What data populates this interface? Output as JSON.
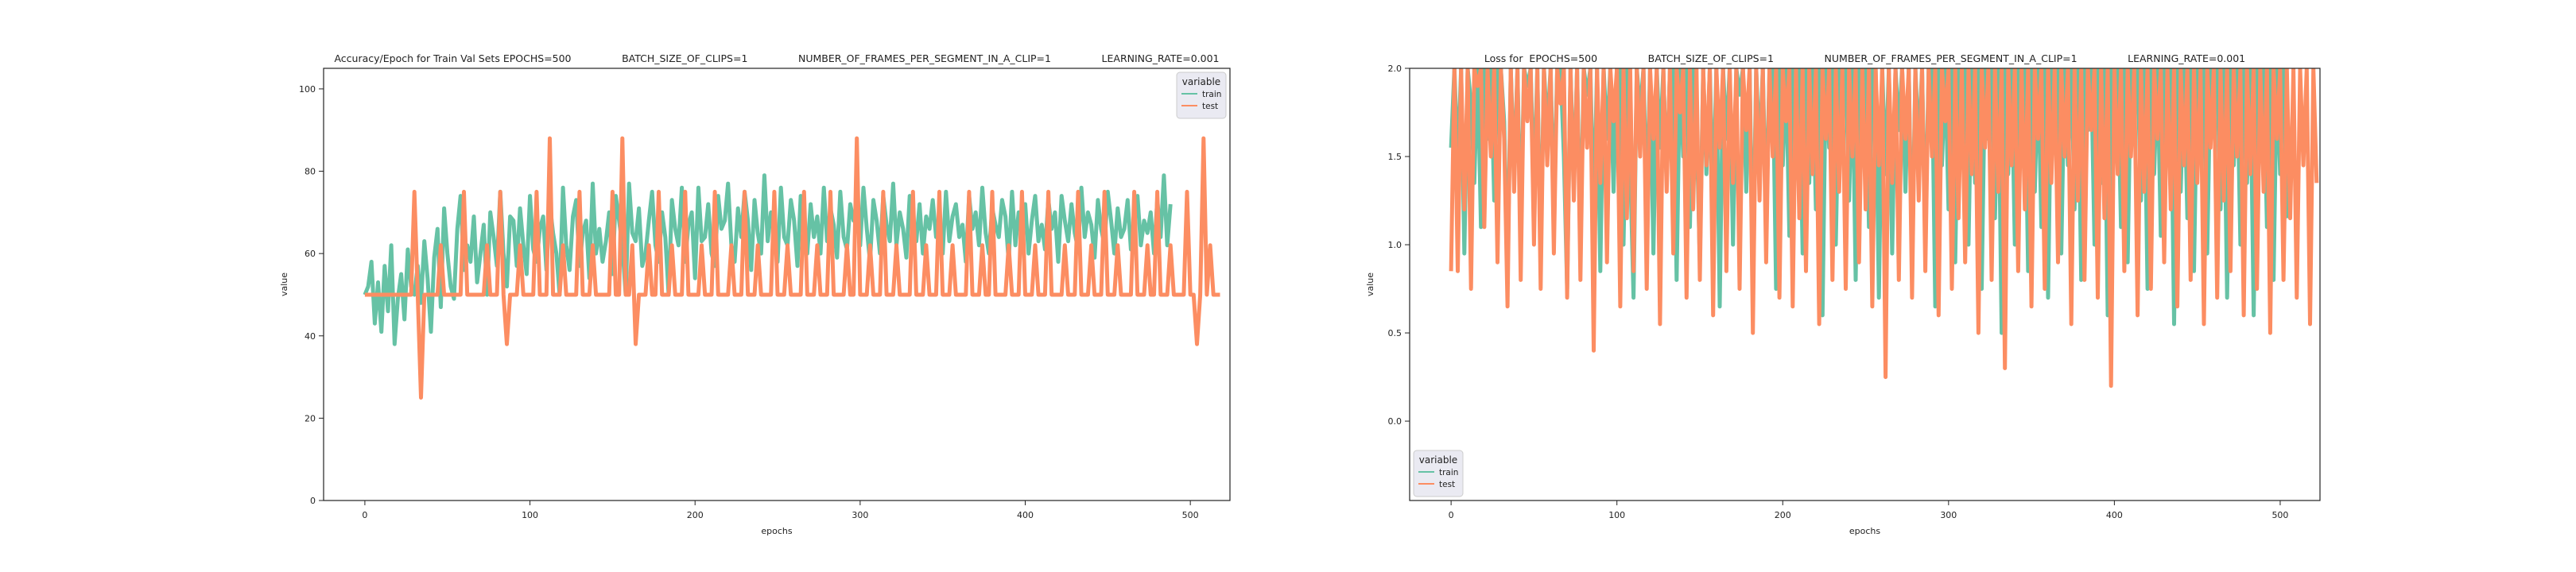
{
  "colors": {
    "train": "#66c2a5",
    "test": "#fc8d62",
    "axis": "#222222",
    "legend_bg": "#eaeaf2"
  },
  "chart_data": [
    {
      "type": "line",
      "title": "Accuracy/Epoch for Train Val Sets EPOCHS=500                BATCH_SIZE_OF_CLIPS=1                NUMBER_OF_FRAMES_PER_SEGMENT_IN_A_CLIP=1                LEARNING_RATE=0.001",
      "xlabel": "epochs",
      "ylabel": "value",
      "xlim": [
        -25,
        524
      ],
      "ylim": [
        0,
        105
      ],
      "xticks": [
        0,
        100,
        200,
        300,
        400,
        500
      ],
      "yticks": [
        0,
        20,
        40,
        60,
        80,
        100
      ],
      "legend": {
        "title": "variable",
        "placement": "top-right",
        "entries": [
          "train",
          "test"
        ]
      },
      "series": [
        {
          "name": "train",
          "x_start": 0,
          "x_step": 2,
          "values": [
            50,
            52,
            58,
            43,
            53,
            41,
            57,
            46,
            62,
            38,
            49,
            55,
            44,
            61,
            52,
            50,
            57,
            48,
            63,
            54,
            41,
            59,
            66,
            47,
            71,
            60,
            52,
            49,
            66,
            74,
            56,
            62,
            58,
            69,
            53,
            60,
            67,
            50,
            70,
            64,
            57,
            75,
            60,
            52,
            69,
            68,
            57,
            71,
            62,
            55,
            74,
            61,
            58,
            66,
            69,
            56,
            72,
            65,
            60,
            50,
            76,
            62,
            56,
            69,
            73,
            57,
            65,
            68,
            54,
            77,
            60,
            66,
            58,
            63,
            70,
            55,
            74,
            68,
            62,
            50,
            77,
            65,
            63,
            71,
            57,
            60,
            68,
            75,
            62,
            58,
            70,
            64,
            50,
            73,
            66,
            62,
            76,
            58,
            67,
            70,
            54,
            76,
            63,
            64,
            72,
            60,
            57,
            74,
            66,
            68,
            77,
            62,
            58,
            71,
            64,
            75,
            68,
            56,
            73,
            65,
            60,
            79,
            63,
            70,
            67,
            58,
            76,
            64,
            62,
            73,
            68,
            57,
            74,
            66,
            60,
            72,
            64,
            69,
            60,
            76,
            63,
            71,
            67,
            59,
            75,
            64,
            61,
            72,
            68,
            70,
            62,
            76,
            66,
            58,
            73,
            68,
            60,
            74,
            67,
            63,
            77,
            62,
            70,
            66,
            59,
            74,
            68,
            63,
            72,
            60,
            69,
            66,
            73,
            64,
            67,
            60,
            75,
            63,
            69,
            72,
            64,
            67,
            58,
            74,
            66,
            70,
            62,
            76,
            65,
            60,
            71,
            67,
            64,
            73,
            69,
            58,
            75,
            62,
            70,
            66,
            72,
            60,
            68,
            74,
            63,
            67,
            61,
            73,
            66,
            70,
            58,
            74,
            68,
            63,
            72,
            65,
            61,
            76,
            64,
            70,
            67,
            59,
            73,
            66,
            62,
            75,
            68,
            60,
            71,
            64,
            66,
            73,
            61,
            69,
            74,
            62,
            68,
            65,
            70,
            60,
            73,
            64,
            79,
            62,
            72
          ]
        },
        {
          "name": "test",
          "x_start": 0,
          "x_step": 2,
          "values": [
            50,
            50,
            50,
            50,
            50,
            50,
            50,
            50,
            50,
            50,
            50,
            50,
            50,
            50,
            50,
            75,
            50,
            25,
            50,
            50,
            50,
            50,
            50,
            62,
            50,
            50,
            50,
            50,
            50,
            50,
            75,
            50,
            50,
            50,
            50,
            50,
            50,
            62,
            50,
            50,
            50,
            75,
            50,
            38,
            50,
            50,
            50,
            62,
            50,
            50,
            50,
            50,
            75,
            50,
            50,
            50,
            88,
            50,
            50,
            50,
            62,
            50,
            50,
            50,
            50,
            75,
            50,
            50,
            50,
            62,
            50,
            50,
            50,
            50,
            50,
            75,
            50,
            50,
            88,
            50,
            50,
            62,
            38,
            50,
            50,
            50,
            62,
            50,
            50,
            75,
            50,
            50,
            50,
            62,
            50,
            50,
            50,
            75,
            50,
            50,
            50,
            50,
            62,
            50,
            50,
            50,
            75,
            50,
            50,
            50,
            50,
            62,
            50,
            50,
            50,
            75,
            50,
            50,
            50,
            62,
            50,
            50,
            50,
            50,
            75,
            50,
            50,
            50,
            62,
            50,
            50,
            50,
            50,
            75,
            50,
            50,
            50,
            62,
            50,
            50,
            50,
            75,
            50,
            50,
            50,
            50,
            62,
            50,
            50,
            88,
            50,
            50,
            50,
            62,
            50,
            50,
            50,
            75,
            50,
            50,
            50,
            62,
            50,
            50,
            50,
            50,
            75,
            50,
            50,
            50,
            62,
            50,
            50,
            50,
            75,
            50,
            50,
            50,
            62,
            50,
            50,
            50,
            50,
            75,
            50,
            50,
            50,
            62,
            50,
            50,
            75,
            50,
            50,
            50,
            50,
            62,
            50,
            50,
            50,
            75,
            50,
            50,
            50,
            62,
            50,
            50,
            50,
            75,
            50,
            50,
            50,
            50,
            62,
            50,
            50,
            50,
            75,
            50,
            50,
            50,
            62,
            50,
            50,
            50,
            75,
            50,
            50,
            50,
            62,
            50,
            50,
            50,
            50,
            75,
            50,
            50,
            50,
            62,
            50,
            50,
            75,
            50,
            50,
            50,
            62,
            50,
            50,
            50,
            50,
            75,
            50,
            50,
            38,
            50,
            88,
            50,
            62,
            50,
            50,
            50
          ]
        }
      ]
    },
    {
      "type": "line",
      "title": "Loss for  EPOCHS=500                BATCH_SIZE_OF_CLIPS=1                NUMBER_OF_FRAMES_PER_SEGMENT_IN_A_CLIP=1                LEARNING_RATE=0.001",
      "xlabel": "epochs",
      "ylabel": "value",
      "xlim": [
        -25,
        524
      ],
      "ylim": [
        -0.45,
        2.0
      ],
      "xticks": [
        0,
        100,
        200,
        300,
        400,
        500
      ],
      "yticks": [
        0.0,
        0.5,
        1.0,
        1.5,
        2.0
      ],
      "legend": {
        "title": "variable",
        "placement": "lower-left",
        "entries": [
          "train",
          "test"
        ]
      },
      "series": [
        {
          "name": "train",
          "x_start": 0,
          "x_step": 2,
          "values": [
            1.55,
            2.0,
            1.45,
            2.0,
            0.95,
            2.0,
            1.8,
            1.35,
            2.0,
            1.1,
            2.0,
            1.6,
            2.0,
            1.25,
            2.0,
            2.0,
            1.7,
            0.8,
            2.0,
            1.4,
            2.0,
            1.05,
            2.0,
            1.9,
            2.0,
            1.3,
            2.0,
            0.9,
            2.0,
            1.65,
            2.0,
            1.2,
            2.0,
            2.0,
            1.5,
            0.75,
            2.0,
            1.35,
            2.0,
            1.0,
            2.0,
            1.85,
            2.0,
            1.15,
            2.0,
            0.85,
            2.0,
            1.6,
            2.0,
            1.3,
            2.0,
            2.0,
            1.0,
            2.0,
            1.45,
            0.7,
            2.0,
            1.75,
            2.0,
            1.2,
            2.0,
            0.95,
            2.0,
            1.55,
            2.0,
            1.35,
            2.0,
            2.0,
            0.8,
            2.0,
            1.5,
            2.0,
            1.1,
            2.0,
            1.7,
            0.9,
            2.0,
            1.4,
            2.0,
            1.25,
            2.0,
            0.65,
            2.0,
            1.6,
            2.0,
            1.0,
            2.0,
            1.85,
            2.0,
            1.3,
            2.0,
            0.85,
            2.0,
            1.5,
            2.0,
            1.15,
            2.0,
            2.0,
            0.75,
            2.0,
            1.45,
            2.0,
            1.05,
            2.0,
            1.7,
            2.0,
            0.95,
            2.0,
            1.35,
            2.0,
            1.2,
            2.0,
            0.6,
            2.0,
            1.55,
            2.0,
            1.0,
            2.0,
            1.8,
            2.0,
            1.25,
            2.0,
            0.8,
            2.0,
            1.5,
            2.0,
            1.1,
            2.0,
            2.0,
            0.7,
            2.0,
            1.4,
            2.0,
            0.95,
            2.0,
            1.65,
            2.0,
            1.3,
            2.0,
            0.85,
            2.0,
            1.55,
            2.0,
            1.05,
            2.0,
            2.0,
            0.65,
            2.0,
            1.45,
            2.0,
            1.2,
            2.0,
            0.9,
            2.0,
            1.7,
            2.0,
            1.0,
            2.0,
            1.35,
            2.0,
            0.75,
            2.0,
            1.6,
            2.0,
            1.15,
            2.0,
            0.5,
            2.0,
            1.4,
            2.0,
            1.0,
            2.0,
            1.75,
            2.0,
            0.85,
            2.0,
            1.3,
            2.0,
            1.1,
            2.0,
            0.7,
            2.0,
            1.55,
            2.0,
            0.95,
            2.0,
            1.45,
            2.0,
            1.2,
            2.0,
            0.8,
            2.0,
            1.65,
            2.0,
            1.0,
            2.0,
            1.35,
            2.0,
            0.6,
            2.0,
            1.5,
            2.0,
            1.1,
            2.0,
            0.9,
            2.0,
            1.7,
            2.0,
            1.25,
            2.0,
            0.75,
            2.0,
            1.4,
            2.0,
            1.05,
            2.0,
            1.6,
            2.0,
            0.55,
            2.0,
            1.3,
            2.0,
            1.15,
            2.0,
            0.85,
            2.0,
            1.5,
            2.0,
            0.95,
            2.0,
            1.75,
            2.0,
            1.2,
            2.0,
            0.7,
            2.0,
            1.45,
            2.0,
            1.0,
            2.0,
            1.35,
            2.0,
            0.6,
            2.0,
            1.55,
            2.0,
            1.1,
            2.0,
            0.8,
            2.0,
            1.4,
            2.0,
            1.15
          ]
        },
        {
          "name": "test",
          "x_start": 0,
          "x_step": 2,
          "values": [
            0.85,
            2.0,
            0.85,
            2.0,
            1.2,
            2.0,
            0.75,
            2.0,
            1.9,
            2.0,
            1.1,
            2.0,
            1.5,
            2.0,
            0.9,
            2.0,
            1.6,
            0.65,
            2.0,
            1.3,
            2.0,
            0.8,
            2.0,
            1.7,
            2.0,
            1.0,
            2.0,
            0.75,
            2.0,
            1.45,
            2.0,
            0.95,
            2.0,
            1.8,
            2.0,
            0.7,
            2.0,
            1.25,
            2.0,
            0.8,
            2.0,
            1.55,
            2.0,
            0.4,
            2.0,
            1.35,
            2.0,
            0.9,
            2.0,
            1.7,
            2.0,
            0.65,
            2.0,
            1.15,
            2.0,
            0.85,
            2.0,
            1.5,
            2.0,
            0.75,
            2.0,
            1.6,
            2.0,
            0.55,
            2.0,
            1.3,
            2.0,
            0.95,
            2.0,
            1.75,
            2.0,
            0.7,
            2.0,
            1.2,
            2.0,
            0.8,
            2.0,
            1.45,
            2.0,
            0.6,
            2.0,
            1.55,
            2.0,
            0.85,
            2.0,
            1.35,
            2.0,
            0.75,
            2.0,
            1.65,
            2.0,
            0.5,
            2.0,
            1.25,
            2.0,
            0.9,
            2.0,
            1.5,
            2.0,
            0.7,
            2.0,
            1.7,
            2.0,
            0.65,
            2.0,
            1.15,
            2.0,
            0.85,
            2.0,
            1.4,
            2.0,
            0.55,
            2.0,
            1.6,
            2.0,
            0.8,
            2.0,
            1.3,
            2.0,
            0.75,
            2.0,
            1.5,
            2.0,
            0.9,
            2.0,
            1.2,
            2.0,
            0.65,
            2.0,
            1.45,
            2.0,
            0.25,
            2.0,
            1.35,
            2.0,
            0.8,
            2.0,
            1.6,
            2.0,
            0.7,
            2.0,
            1.25,
            2.0,
            0.85,
            2.0,
            1.5,
            2.0,
            0.6,
            2.0,
            1.7,
            2.0,
            0.75,
            2.0,
            1.15,
            2.0,
            0.9,
            2.0,
            1.4,
            2.0,
            0.5,
            2.0,
            1.55,
            2.0,
            0.8,
            2.0,
            1.3,
            2.0,
            0.3,
            2.0,
            1.45,
            2.0,
            0.85,
            2.0,
            1.2,
            2.0,
            0.65,
            2.0,
            1.6,
            2.0,
            0.75,
            2.0,
            1.35,
            2.0,
            0.9,
            2.0,
            1.5,
            2.0,
            0.55,
            2.0,
            1.25,
            2.0,
            0.8,
            2.0,
            1.65,
            2.0,
            0.7,
            2.0,
            1.15,
            2.0,
            0.2,
            2.0,
            1.4,
            2.0,
            0.85,
            2.0,
            1.5,
            2.0,
            0.6,
            2.0,
            1.3,
            2.0,
            0.75,
            2.0,
            1.6,
            2.0,
            0.9,
            2.0,
            1.2,
            2.0,
            0.65,
            2.0,
            1.45,
            2.0,
            0.8,
            2.0,
            1.35,
            2.0,
            0.55,
            2.0,
            1.55,
            2.0,
            0.7,
            2.0,
            1.25,
            2.0,
            0.85,
            2.0,
            1.5,
            2.0,
            0.6,
            2.0,
            1.4,
            2.0,
            0.75,
            2.0,
            1.3,
            2.0,
            0.5,
            2.0,
            1.6,
            2.0,
            0.8,
            2.0,
            1.15,
            2.0,
            0.7,
            2.0,
            1.45,
            2.0,
            0.55,
            2.0,
            1.35
          ]
        }
      ]
    }
  ]
}
